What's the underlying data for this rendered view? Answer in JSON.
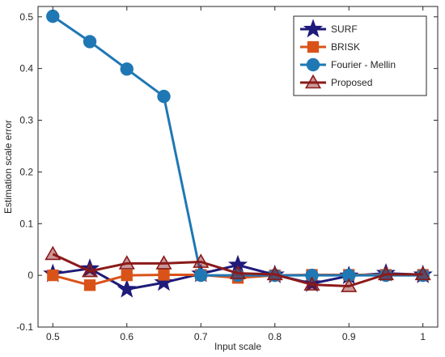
{
  "chart_data": {
    "type": "line",
    "title": "",
    "xlabel": "Input scale",
    "ylabel": "Estimation scale error",
    "xlim": [
      0.48,
      1.02
    ],
    "ylim": [
      -0.1,
      0.52
    ],
    "xticks": [
      0.5,
      0.6,
      0.7,
      0.8,
      0.9,
      1
    ],
    "xtick_labels": [
      "0.5",
      "0.6",
      "0.7",
      "0.8",
      "0.9",
      "1"
    ],
    "yticks": [
      -0.1,
      0,
      0.1,
      0.2,
      0.3,
      0.4,
      0.5
    ],
    "ytick_labels": [
      "-0.1",
      "0",
      "0.1",
      "0.2",
      "0.3",
      "0.4",
      "0.5"
    ],
    "grid": false,
    "legend_position": "top-right",
    "x": [
      0.5,
      0.55,
      0.6,
      0.65,
      0.7,
      0.75,
      0.8,
      0.85,
      0.9,
      0.95,
      1.0
    ],
    "series": [
      {
        "name": "SURF",
        "color": "#1f1b7a",
        "marker": "star",
        "values": [
          0.003,
          0.013,
          -0.027,
          -0.014,
          0.003,
          0.02,
          0.001,
          -0.016,
          -0.001,
          0.004,
          0.001
        ]
      },
      {
        "name": "BRISK",
        "color": "#d95319",
        "marker": "square",
        "values": [
          0.0,
          -0.019,
          0.0,
          0.001,
          0.001,
          -0.005,
          0.0,
          0.001,
          0.001,
          0.001,
          0.001
        ]
      },
      {
        "name": "Fourier - Mellin",
        "color": "#1f78b4",
        "marker": "circle",
        "values": [
          0.501,
          0.452,
          0.399,
          0.346,
          0.0,
          0.0,
          0.0,
          0.0,
          0.0,
          0.0,
          0.0
        ]
      },
      {
        "name": "Proposed",
        "color": "#8b1a1a",
        "marker": "triangle",
        "values": [
          0.041,
          0.008,
          0.023,
          0.023,
          0.026,
          0.004,
          0.002,
          -0.018,
          -0.021,
          0.002,
          0.002
        ]
      }
    ]
  }
}
